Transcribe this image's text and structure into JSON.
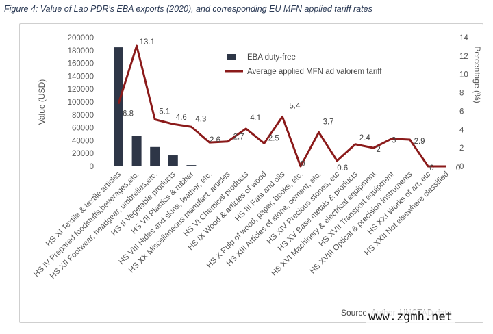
{
  "figure_title": "Figure 4: Value of Lao PDR's EBA exports (2020), and corresponding EU MFN applied tariff rates",
  "source_note": "Source: Author, UNCTAD data",
  "watermark": "www.zgmh.net",
  "chart_data": {
    "type": "bar",
    "categories": [
      "HS XI Textile & textile articles",
      "HS IV Prepared foodstuffs,beverages,etc.",
      "HS XII Footwear, headgear, umbrellas,etc.",
      "HS II Vegetable products",
      "HS VII Plastics & rubber",
      "HS VIII Hides and skins, leather, etc.",
      "HS XX Miscellaneous manufact. articles",
      "HS VI Chemical products",
      "HS IX Wood & articles of wood",
      "HS III Fats and oils",
      "HS X Pulp of wood, paper, books, etc.",
      "HS XIII Articles of stone, cement, etc.",
      "HS XIV Precious stones, etc",
      "HS XV Base metals & products",
      "HS XVI Machinery & electrical equipment",
      "HS XVII Transport equipment",
      "HS XVIII Optical & precision instruments",
      "HS XXI Works of art, etc",
      "HS XXII Not elsewhere classified"
    ],
    "series": [
      {
        "name": "EBA duty-free",
        "type": "bar",
        "axis": "left",
        "color": "#2e3647",
        "values": [
          185000,
          47000,
          30000,
          17000,
          2000,
          0,
          0,
          0,
          0,
          0,
          0,
          0,
          0,
          0,
          0,
          0,
          0,
          0,
          0
        ]
      },
      {
        "name": "Average applied MFN ad valorem tariff",
        "type": "line",
        "axis": "right",
        "color": "#8b1a1a",
        "values": [
          6.8,
          13.1,
          5.1,
          4.6,
          4.3,
          2.6,
          2.7,
          4.1,
          2.5,
          5.4,
          0,
          3.7,
          0.6,
          2.4,
          2,
          3,
          2.9,
          0,
          0
        ],
        "labels": [
          "6.8",
          "13.1",
          "5.1",
          "4.6",
          "4.3",
          "2.6",
          "2.7",
          "4.1",
          "2.5",
          "5.4",
          "0",
          "3.7",
          "0.6",
          "2.4",
          "2",
          "3",
          "2.9",
          "0",
          "0"
        ]
      }
    ],
    "ylabel": "Value (USD)",
    "y2label": "Percentage (%)",
    "ylim": [
      0,
      200000
    ],
    "y2lim": [
      0,
      14
    ],
    "yticks": [
      "0",
      "20000",
      "40000",
      "60000",
      "80000",
      "100000",
      "120000",
      "140000",
      "160000",
      "180000",
      "200000"
    ],
    "y2ticks": [
      "0",
      "2",
      "4",
      "6",
      "8",
      "10",
      "12",
      "14"
    ],
    "grid": false,
    "legend_position": "top-center"
  }
}
